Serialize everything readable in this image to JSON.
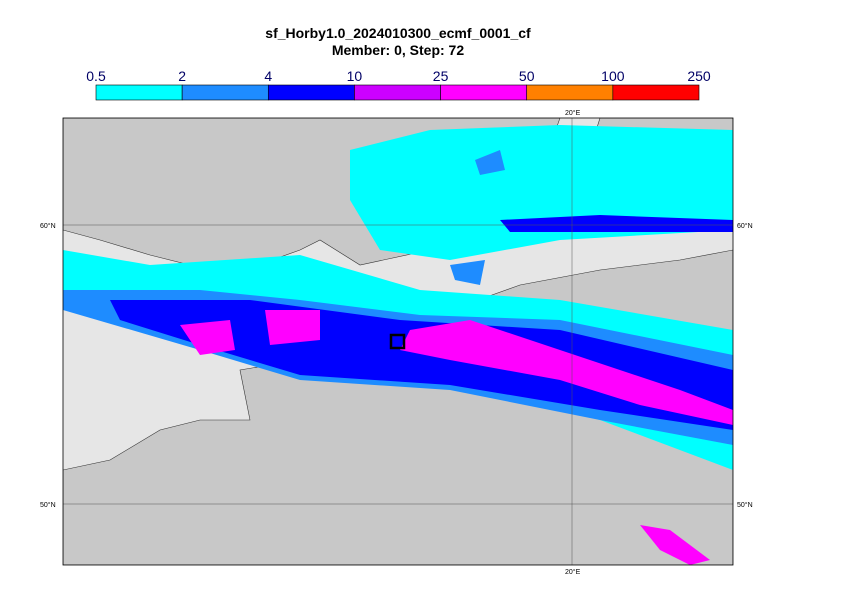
{
  "header": {
    "title": "sf_Horby1.0_2024010300_ecmf_0001_cf",
    "subtitle": "Member: 0, Step: 72"
  },
  "colorbar": {
    "levels": [
      0.5,
      2,
      4,
      10,
      25,
      50,
      100,
      250
    ],
    "colors": [
      "#00ffff",
      "#1e8cff",
      "#0000ff",
      "#cc00ff",
      "#ff00ff",
      "#ff8000",
      "#ff0000"
    ]
  },
  "map": {
    "lat_labels": [
      "60°N",
      "50°N"
    ],
    "lon_labels": [
      "20°E"
    ]
  }
}
